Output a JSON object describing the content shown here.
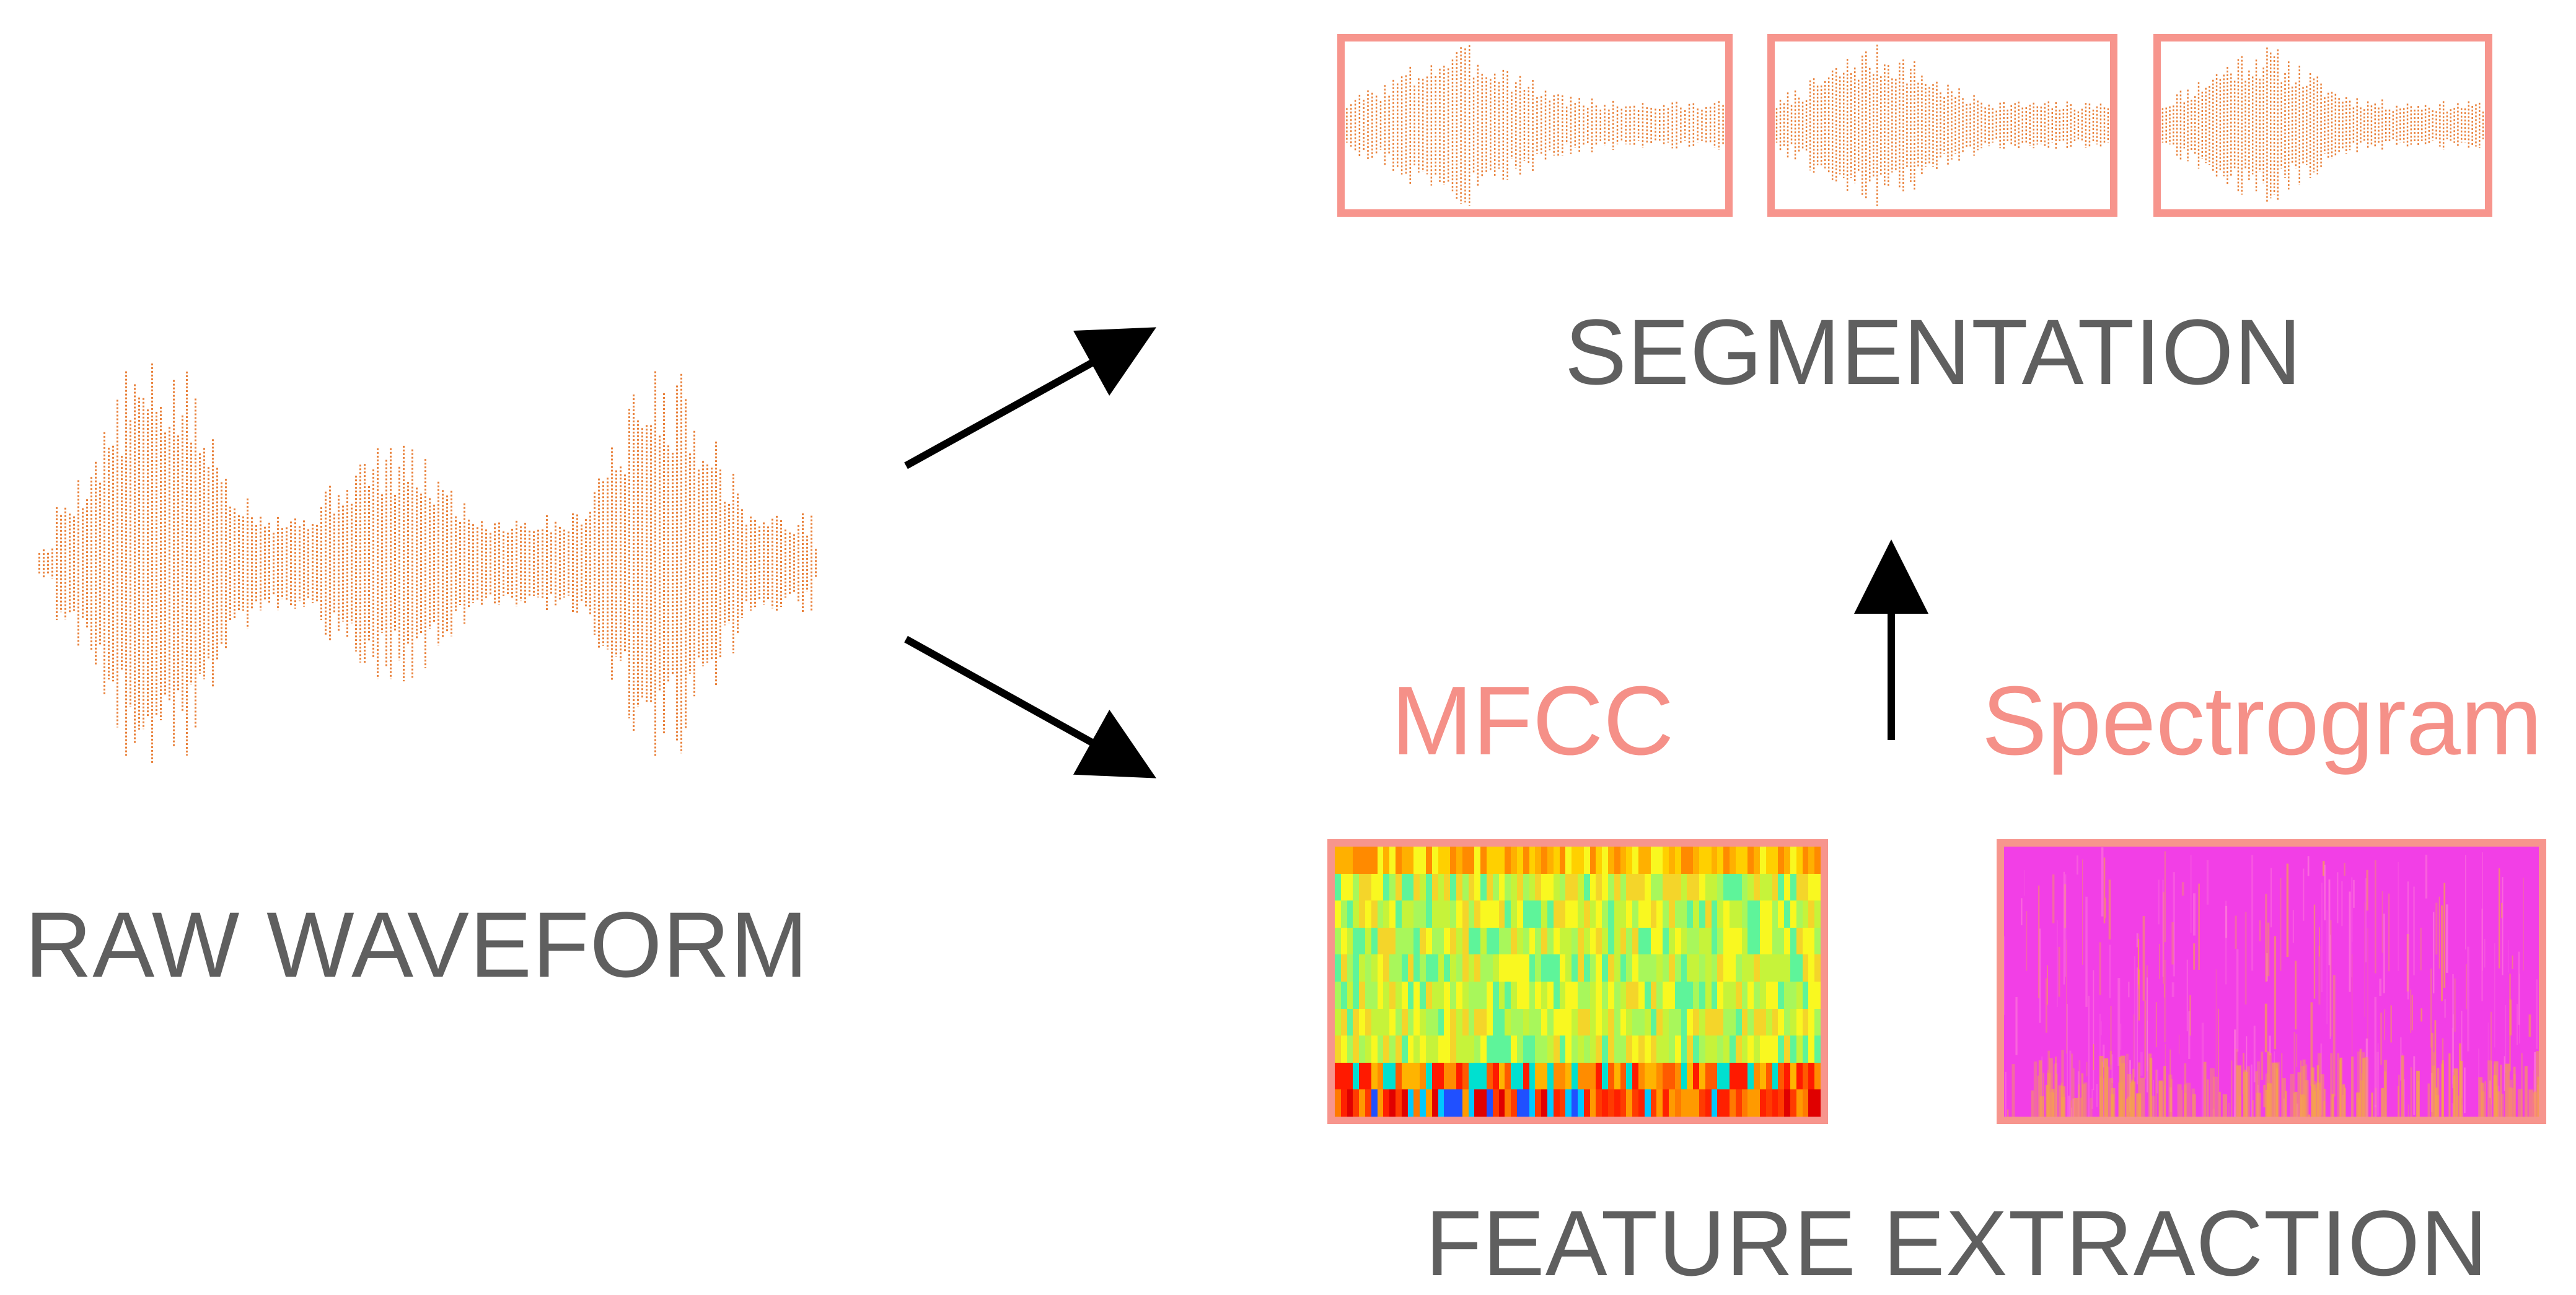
{
  "labels": {
    "raw_waveform": "RAW WAVEFORM",
    "segmentation": "SEGMENTATION",
    "feature_extraction": "FEATURE EXTRACTION",
    "mfcc": "MFCC",
    "spectrogram": "Spectrogram"
  },
  "colors": {
    "waveform": "#e9823c",
    "box_border": "#f7958d",
    "heading_text": "#5f5f5f",
    "feature_label_text": "#f59088",
    "arrow": "#000000",
    "spectrogram_base": "#f23fe6",
    "spectrogram_highlight": "#f5a34a"
  },
  "segments": [
    "segment-1",
    "segment-2",
    "segment-3"
  ]
}
